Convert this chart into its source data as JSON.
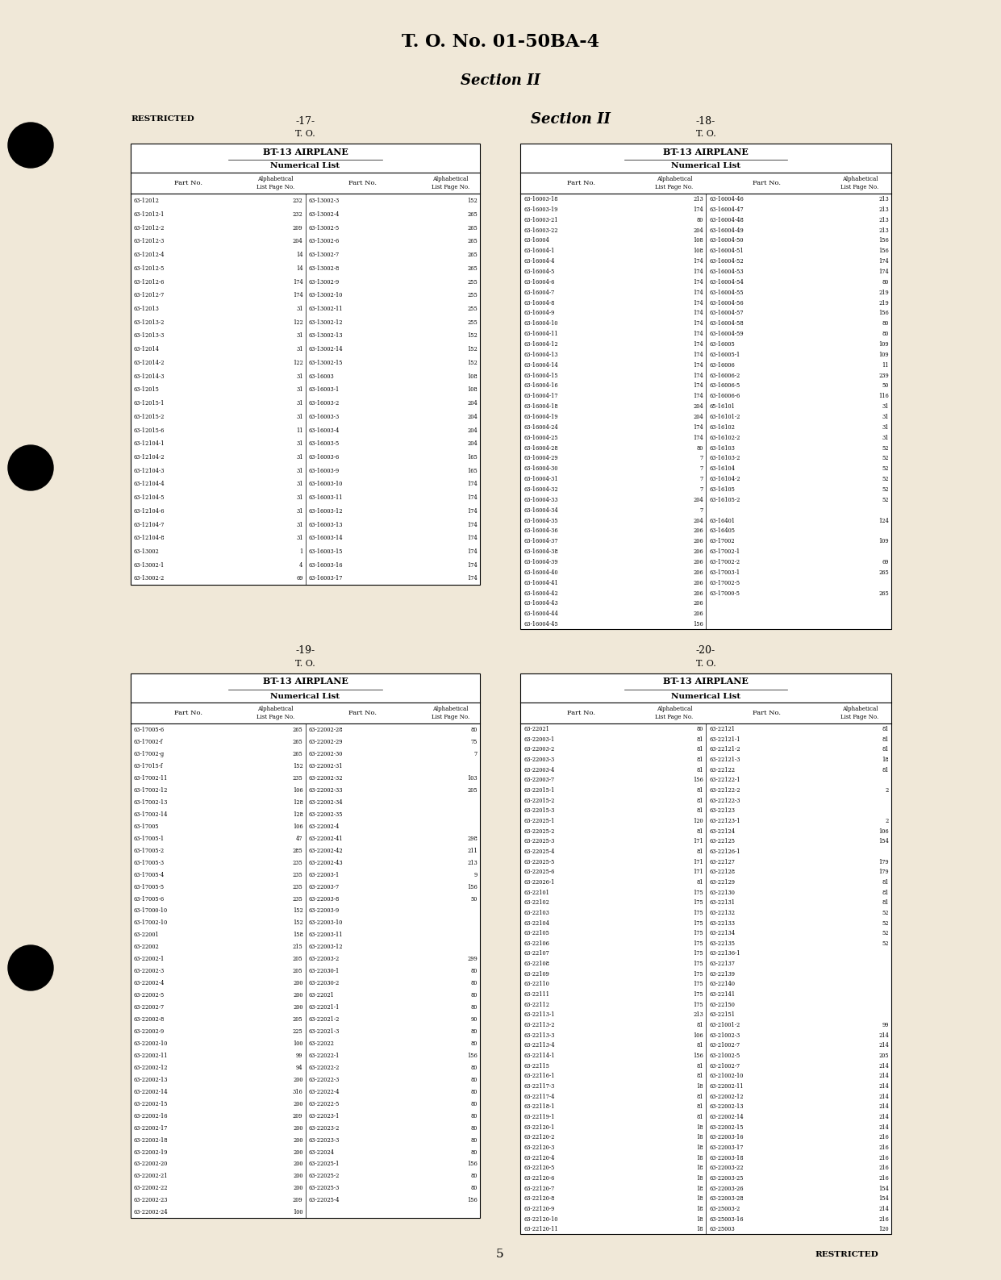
{
  "bg_color": "#f0e8d8",
  "title_main": "T. O. No. 01-50BA-4",
  "title_section": "Section II",
  "page_number": "5",
  "restricted_text": "RESTRICTED",
  "restricted_bottom": "RESTRICTED",
  "panels": [
    {
      "id": "top_left",
      "page_num_label": "-17-",
      "to_label": "T. O.",
      "header1": "BT-13 AIRPLANE",
      "header2": "Numerical List",
      "col1_label": "Part No.",
      "col2_label": "Alphabetical\nList Page No.",
      "col3_label": "Part No.",
      "col4_label": "Alphabetical\nList Page No.",
      "rows": [
        [
          "63-12012",
          "232",
          "63-13002-3",
          "152"
        ],
        [
          "63-12012-1",
          "232",
          "63-13002-4",
          "265"
        ],
        [
          "63-12012-2",
          "209",
          "63-13002-5",
          "265"
        ],
        [
          "63-12012-3",
          "204",
          "63-13002-6",
          "265"
        ],
        [
          "63-12012-4",
          "14",
          "63-13002-7",
          "265"
        ],
        [
          "63-12012-5",
          "14",
          "63-13002-8",
          "265"
        ],
        [
          "63-12012-6",
          "174",
          "63-13002-9",
          "255"
        ],
        [
          "63-12012-7",
          "174",
          "63-13002-10",
          "255"
        ],
        [
          "63-12013",
          "31",
          "63-13002-11",
          "255"
        ],
        [
          "63-12013-2",
          "122",
          "63-13002-12",
          "255"
        ],
        [
          "63-12013-3",
          "31",
          "63-13002-13",
          "152"
        ],
        [
          "63-12014",
          "31",
          "63-13002-14",
          "152"
        ],
        [
          "63-12014-2",
          "122",
          "63-13002-15",
          "152"
        ],
        [
          "63-12014-3",
          "31",
          "63-16003",
          "108"
        ],
        [
          "63-12015",
          "31",
          "63-16003-1",
          "108"
        ],
        [
          "63-12015-1",
          "31",
          "63-16003-2",
          "204"
        ],
        [
          "63-12015-2",
          "31",
          "63-16003-3",
          "204"
        ],
        [
          "63-12015-6",
          "11",
          "63-16003-4",
          "204"
        ],
        [
          "63-12104-1",
          "31",
          "63-16003-5",
          "204"
        ],
        [
          "63-12104-2",
          "31",
          "63-16003-6",
          "165"
        ],
        [
          "63-12104-3",
          "31",
          "63-16003-9",
          "165"
        ],
        [
          "63-12104-4",
          "31",
          "63-16003-10",
          "174"
        ],
        [
          "63-12104-5",
          "31",
          "63-16003-11",
          "174"
        ],
        [
          "63-12104-6",
          "31",
          "63-16003-12",
          "174"
        ],
        [
          "63-12104-7",
          "31",
          "63-16003-13",
          "174"
        ],
        [
          "63-12104-8",
          "31",
          "63-16003-14",
          "174"
        ],
        [
          "63-13002",
          "1",
          "63-16003-15",
          "174"
        ],
        [
          "63-13002-1",
          "4",
          "63-16003-16",
          "174"
        ],
        [
          "63-13002-2",
          "69",
          "63-16003-17",
          "174"
        ]
      ]
    },
    {
      "id": "top_right",
      "page_num_label": "-18-",
      "to_label": "T. O.",
      "header1": "BT-13 AIRPLANE",
      "header2": "Numerical List",
      "col1_label": "Part No.",
      "col2_label": "Alphabetical\nList Page No.",
      "col3_label": "Part No.",
      "col4_label": "Alphabetical\nList Page No.",
      "rows": [
        [
          "63-16003-18",
          "213",
          "63-16004-46",
          "213"
        ],
        [
          "63-16003-19",
          "174",
          "63-16004-47",
          "213"
        ],
        [
          "63-16003-21",
          "80",
          "63-16004-48",
          "213"
        ],
        [
          "63-16003-22",
          "204",
          "63-16004-49",
          "213"
        ],
        [
          "63-16004",
          "108",
          "63-16004-50",
          "156"
        ],
        [
          "63-16004-1",
          "108",
          "63-16004-51",
          "156"
        ],
        [
          "63-16004-4",
          "174",
          "63-16004-52",
          "174"
        ],
        [
          "63-16004-5",
          "174",
          "63-16004-53",
          "174"
        ],
        [
          "63-16004-6",
          "174",
          "63-16004-54",
          "80"
        ],
        [
          "63-16004-7",
          "174",
          "63-16004-55",
          "219"
        ],
        [
          "63-16004-8",
          "174",
          "63-16004-56",
          "219"
        ],
        [
          "63-16004-9",
          "174",
          "63-16004-57",
          "156"
        ],
        [
          "63-16004-10",
          "174",
          "63-16004-58",
          "80"
        ],
        [
          "63-16004-11",
          "174",
          "63-16004-59",
          "80"
        ],
        [
          "63-16004-12",
          "174",
          "63-16005",
          "109"
        ],
        [
          "63-16004-13",
          "174",
          "63-16005-1",
          "109"
        ],
        [
          "63-16004-14",
          "174",
          "63-16006",
          "11"
        ],
        [
          "63-16004-15",
          "174",
          "63-16006-2",
          "239"
        ],
        [
          "63-16004-16",
          "174",
          "63-16006-5",
          "50"
        ],
        [
          "63-16004-17",
          "174",
          "63-16006-6",
          "116"
        ],
        [
          "63-16004-18",
          "204",
          "65-16101",
          "31"
        ],
        [
          "63-16004-19",
          "204",
          "63-16101-2",
          "31"
        ],
        [
          "63-16004-24",
          "174",
          "63-16102",
          "31"
        ],
        [
          "63-16004-25",
          "174",
          "63-16102-2",
          "31"
        ],
        [
          "63-16004-28",
          "80",
          "63-16103",
          "52"
        ],
        [
          "63-16004-29",
          "7",
          "63-16103-2",
          "52"
        ],
        [
          "63-16004-30",
          "7",
          "63-16104",
          "52"
        ],
        [
          "63-16004-31",
          "7",
          "63-16104-2",
          "52"
        ],
        [
          "63-16004-32",
          "7",
          "63-16105",
          "52"
        ],
        [
          "63-16004-33",
          "204",
          "63-16105-2",
          "52"
        ],
        [
          "63-16004-34",
          "7",
          "",
          ""
        ],
        [
          "63-16004-35",
          "204",
          "63-16401",
          "124"
        ],
        [
          "63-16004-36",
          "206",
          "63-16405",
          ""
        ],
        [
          "63-16004-37",
          "206",
          "63-17002",
          "109"
        ],
        [
          "63-16004-38",
          "206",
          "63-17002-1",
          ""
        ],
        [
          "63-16004-39",
          "206",
          "63-17002-2",
          "69"
        ],
        [
          "63-16004-40",
          "206",
          "63-17003-1",
          "265"
        ],
        [
          "63-16004-41",
          "206",
          "63-17002-5",
          ""
        ],
        [
          "63-16004-42",
          "206",
          "63-17000-5",
          "265"
        ],
        [
          "63-16004-43",
          "206",
          "",
          ""
        ],
        [
          "63-16004-44",
          "206",
          "",
          ""
        ],
        [
          "63-16004-45",
          "156",
          "",
          ""
        ]
      ]
    },
    {
      "id": "bottom_left",
      "page_num_label": "-19-",
      "to_label": "T. O.",
      "header1": "BT-13 AIRPLANE",
      "header2": "Numerical List",
      "col1_label": "Part No.",
      "col2_label": "Alphabetical\nList Page No.",
      "col3_label": "Part No.",
      "col4_label": "Alphabetical\nList Page No.",
      "rows": [
        [
          "63-17005-6",
          "265",
          "63-22002-28",
          "80"
        ],
        [
          "63-17002-f",
          "265",
          "63-22002-29",
          "75"
        ],
        [
          "63-17002-g",
          "265",
          "63-22002-30",
          "7"
        ],
        [
          "63-17015-f",
          "152",
          "63-22002-31",
          ""
        ],
        [
          "63-17002-11",
          "235",
          "63-22002-32",
          "103"
        ],
        [
          "63-17002-12",
          "106",
          "63-22002-33",
          "205"
        ],
        [
          "63-17002-13",
          "128",
          "63-22002-34",
          ""
        ],
        [
          "63-17002-14",
          "128",
          "63-22002-35",
          ""
        ],
        [
          "63-17005",
          "106",
          "63-22002-4",
          ""
        ],
        [
          "63-17005-1",
          "47",
          "63-22002-41",
          "298"
        ],
        [
          "63-17005-2",
          "285",
          "63-22002-42",
          "211"
        ],
        [
          "63-17005-3",
          "235",
          "63-22002-43",
          "213"
        ],
        [
          "63-17005-4",
          "235",
          "63-22003-1",
          "9"
        ],
        [
          "63-17005-5",
          "235",
          "63-22003-7",
          "156"
        ],
        [
          "63-17005-6",
          "235",
          "63-22003-8",
          "50"
        ],
        [
          "63-17000-10",
          "152",
          "63-22003-9",
          ""
        ],
        [
          "63-17002-10",
          "152",
          "63-22003-10",
          ""
        ],
        [
          "63-22001",
          "158",
          "63-22003-11",
          ""
        ],
        [
          "63-22002",
          "215",
          "63-22003-12",
          ""
        ],
        [
          "63-22002-1",
          "205",
          "63-22003-2",
          "299"
        ],
        [
          "63-22002-3",
          "205",
          "63-22030-1",
          "80"
        ],
        [
          "63-22002-4",
          "200",
          "63-22030-2",
          "80"
        ],
        [
          "63-22002-5",
          "200",
          "63-22021",
          "80"
        ],
        [
          "63-22002-7",
          "200",
          "63-22021-1",
          "80"
        ],
        [
          "63-22002-8",
          "205",
          "63-22021-2",
          "90"
        ],
        [
          "63-22002-9",
          "225",
          "63-22021-3",
          "80"
        ],
        [
          "63-22002-10",
          "100",
          "63-22022",
          "80"
        ],
        [
          "63-22002-11",
          "99",
          "63-22022-1",
          "156"
        ],
        [
          "63-22002-12",
          "94",
          "63-22022-2",
          "80"
        ],
        [
          "63-22002-13",
          "200",
          "63-22022-3",
          "80"
        ],
        [
          "63-22002-14",
          "316",
          "63-22022-4",
          "80"
        ],
        [
          "63-22002-15",
          "200",
          "63-22022-5",
          "80"
        ],
        [
          "63-22002-16",
          "209",
          "63-22023-1",
          "80"
        ],
        [
          "63-22002-17",
          "200",
          "63-22023-2",
          "80"
        ],
        [
          "63-22002-18",
          "200",
          "63-22023-3",
          "80"
        ],
        [
          "63-22002-19",
          "200",
          "63-22024",
          "80"
        ],
        [
          "63-22002-20",
          "200",
          "63-22025-1",
          "156"
        ],
        [
          "63-22002-21",
          "200",
          "63-22025-2",
          "80"
        ],
        [
          "63-22002-22",
          "200",
          "63-22025-3",
          "80"
        ],
        [
          "63-22002-23",
          "209",
          "63-22025-4",
          "156"
        ],
        [
          "63-22002-24",
          "100",
          "",
          ""
        ]
      ]
    },
    {
      "id": "bottom_right",
      "page_num_label": "-20-",
      "to_label": "T. O.",
      "header1": "BT-13 AIRPLANE",
      "header2": "Numerical List",
      "col1_label": "Part No.",
      "col2_label": "Alphabetical\nList Page No.",
      "col3_label": "Part No.",
      "col4_label": "Alphabetical\nList Page No.",
      "rows": [
        [
          "63-22021",
          "80",
          "63-22121",
          "81"
        ],
        [
          "63-22003-1",
          "81",
          "63-22121-1",
          "81"
        ],
        [
          "63-22003-2",
          "81",
          "63-22121-2",
          "81"
        ],
        [
          "63-22003-3",
          "81",
          "63-22121-3",
          "18"
        ],
        [
          "63-22003-4",
          "81",
          "63-22122",
          "81"
        ],
        [
          "63-22003-7",
          "156",
          "63-22122-1",
          ""
        ],
        [
          "63-22015-1",
          "81",
          "63-22122-2",
          "2"
        ],
        [
          "63-22015-2",
          "81",
          "63-22122-3",
          ""
        ],
        [
          "63-22015-3",
          "81",
          "63-22123",
          ""
        ],
        [
          "63-22025-1",
          "120",
          "63-22123-1",
          "2"
        ],
        [
          "63-22025-2",
          "81",
          "63-22124",
          "106"
        ],
        [
          "63-22025-3",
          "171",
          "63-22125",
          "154"
        ],
        [
          "63-22025-4",
          "81",
          "63-22126-1",
          ""
        ],
        [
          "63-22025-5",
          "171",
          "63-22127",
          "179"
        ],
        [
          "63-22025-6",
          "171",
          "63-22128",
          "179"
        ],
        [
          "63-22026-1",
          "81",
          "63-22129",
          "81"
        ],
        [
          "63-22101",
          "175",
          "63-22130",
          "81"
        ],
        [
          "63-22102",
          "175",
          "63-22131",
          "81"
        ],
        [
          "63-22103",
          "175",
          "63-22132",
          "52"
        ],
        [
          "63-22104",
          "175",
          "63-22133",
          "52"
        ],
        [
          "63-22105",
          "175",
          "63-22134",
          "52"
        ],
        [
          "63-22106",
          "175",
          "63-22135",
          "52"
        ],
        [
          "63-22107",
          "175",
          "63-22136-1",
          ""
        ],
        [
          "63-22108",
          "175",
          "63-22137",
          ""
        ],
        [
          "63-22109",
          "175",
          "63-22139",
          ""
        ],
        [
          "63-22110",
          "175",
          "63-22140",
          ""
        ],
        [
          "63-22111",
          "175",
          "63-22141",
          ""
        ],
        [
          "63-22112",
          "175",
          "63-22150",
          ""
        ],
        [
          "63-22113-1",
          "213",
          "63-22151",
          ""
        ],
        [
          "63-22113-2",
          "81",
          "63-21001-2",
          "99"
        ],
        [
          "63-22113-3",
          "106",
          "63-21002-3",
          "214"
        ],
        [
          "63-22113-4",
          "81",
          "63-21002-7",
          "214"
        ],
        [
          "63-22114-1",
          "156",
          "63-21002-5",
          "205"
        ],
        [
          "63-22115",
          "81",
          "63-21002-7",
          "214"
        ],
        [
          "63-22116-1",
          "81",
          "63-21002-10",
          "214"
        ],
        [
          "63-22117-3",
          "18",
          "63-22002-11",
          "214"
        ],
        [
          "63-22117-4",
          "81",
          "63-22002-12",
          "214"
        ],
        [
          "63-22118-1",
          "81",
          "63-22002-13",
          "214"
        ],
        [
          "63-22119-1",
          "81",
          "63-22002-14",
          "214"
        ],
        [
          "63-22120-1",
          "18",
          "63-22002-15",
          "214"
        ],
        [
          "63-22120-2",
          "18",
          "63-22003-16",
          "216"
        ],
        [
          "63-22120-3",
          "18",
          "63-22003-17",
          "216"
        ],
        [
          "63-22120-4",
          "18",
          "63-22003-18",
          "216"
        ],
        [
          "63-22120-5",
          "18",
          "63-22003-22",
          "216"
        ],
        [
          "63-22120-6",
          "18",
          "63-22003-25",
          "216"
        ],
        [
          "63-22120-7",
          "18",
          "63-22003-26",
          "154"
        ],
        [
          "63-22120-8",
          "18",
          "63-22003-28",
          "154"
        ],
        [
          "63-22120-9",
          "18",
          "63-25003-2",
          "214"
        ],
        [
          "63-22120-10",
          "18",
          "63-25003-16",
          "216"
        ],
        [
          "63-22120-11",
          "18",
          "63-25003",
          "120"
        ]
      ]
    }
  ]
}
